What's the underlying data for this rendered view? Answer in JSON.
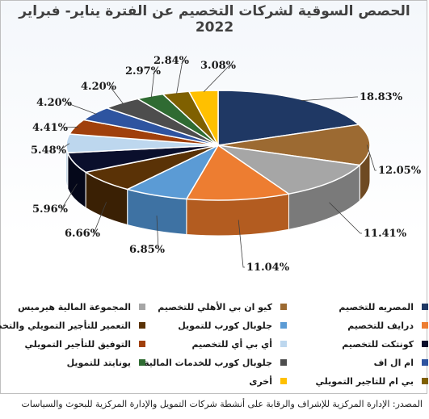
{
  "chart_data": {
    "type": "pie",
    "title": "الحصص السوقية لشركات التخصيم عن الفترة يناير- فبراير 2022",
    "slices": [
      {
        "label": "المصريه للتخصيم",
        "value": 18.83,
        "value_label": "18.83%",
        "color": "#1f3864",
        "side": "#142444"
      },
      {
        "label": "كيو ان بي الأهلي للتخصيم",
        "value": 12.05,
        "value_label": "12.05%",
        "color": "#9c6a32",
        "side": "#6e4a22"
      },
      {
        "label": "المجموعة المالية هيرميس",
        "value": 11.41,
        "value_label": "11.41%",
        "color": "#a6a6a6",
        "side": "#7a7a7a"
      },
      {
        "label": "درايف للتخصيم",
        "value": 11.04,
        "value_label": "11.04%",
        "color": "#ed7d31",
        "side": "#b35c20"
      },
      {
        "label": "جلوبال كورب للتمويل",
        "value": 6.85,
        "value_label": "6.85%",
        "color": "#5b9bd5",
        "side": "#3e72a3"
      },
      {
        "label": "التعمير للتأجير التمويلي والتخصيم",
        "value": 6.66,
        "value_label": "6.66%",
        "color": "#5a3206",
        "side": "#3a2004"
      },
      {
        "label": "كونتكت للتخصيم",
        "value": 5.96,
        "value_label": "5.96%",
        "color": "#0a0f2c",
        "side": "#05081a"
      },
      {
        "label": "أي بي أي للتخصيم",
        "value": 5.48,
        "value_label": "5.48%",
        "color": "#bdd7ee",
        "side": "#8fb0cc"
      },
      {
        "label": "التوفيق للتأجير التمويلي",
        "value": 4.41,
        "value_label": "4.41%",
        "color": "#a0400c",
        "side": "#702c08"
      },
      {
        "label": "ام ال اف",
        "value": 4.2,
        "value_label": "4.20%",
        "color": "#2e54a0",
        "side": "#1e3a72"
      },
      {
        "label": "جلوبال كورب للخدمات المالية",
        "value": 4.2,
        "value_label": "4.20%",
        "color": "#4d4d4d",
        "side": "#303030"
      },
      {
        "label": "يونايتد للتمويل",
        "value": 2.97,
        "value_label": "2.97%",
        "color": "#2f6b32",
        "side": "#1d4a20"
      },
      {
        "label": "بي ام للتاجير التمويلي",
        "value": 2.84,
        "value_label": "2.84%",
        "color": "#7f6000",
        "side": "#5a4400"
      },
      {
        "label": "أخرى",
        "value": 3.08,
        "value_label": "3.08%",
        "color": "#ffc000",
        "side": "#c79400"
      }
    ]
  },
  "source_note": "المصدر: الإدارة المركزية للإشراف والرقابة على أنشطة شركات التمويل والإدارة المركزية للبحوث والسياسات"
}
